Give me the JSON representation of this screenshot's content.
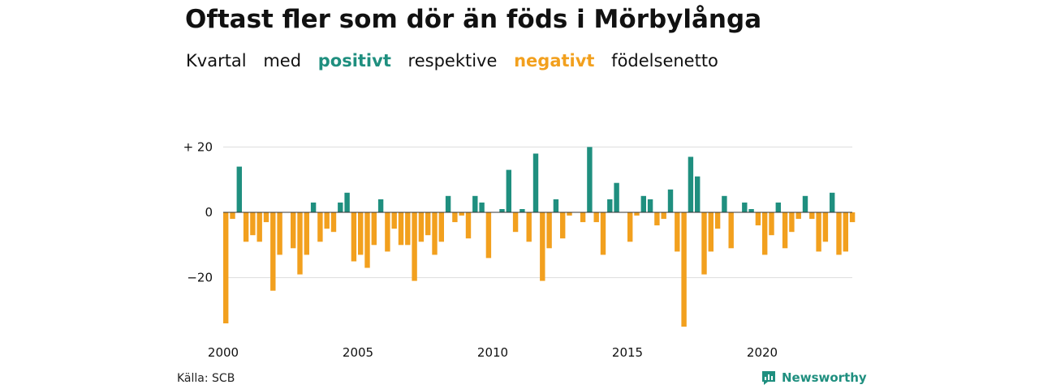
{
  "header": {
    "title": "Oftast fler som dör än föds i Mörbylånga",
    "subtitle_parts": [
      "Kvartal",
      "med",
      "positivt",
      "respektive",
      "negativt",
      "födelsenetto"
    ]
  },
  "footer": {
    "source": "Källa: SCB",
    "brand": "Newsworthy",
    "brand_icon": "chart-bubble-icon"
  },
  "colors": {
    "positive": "#1f8f7f",
    "negative": "#f2a01e",
    "grid": "#dddddd",
    "zero_line": "#333333"
  },
  "chart_data": {
    "type": "bar",
    "title": "Oftast fler som dör än föds i Mörbylånga",
    "subtitle": "Kvartal med positivt respektive negativt födelsenetto",
    "x_start": 2000,
    "periods_per_year": 4,
    "x_tick_labels": [
      "2000",
      "2005",
      "2010",
      "2015",
      "2020"
    ],
    "y_tick_labels": [
      "+ 20",
      "0",
      "−20"
    ],
    "y_ticks": [
      20,
      0,
      -20
    ],
    "ylim": [
      -36,
      22
    ],
    "grid": true,
    "values": [
      -34,
      -2,
      14,
      -9,
      -7,
      -9,
      -3,
      -24,
      -13,
      0,
      -11,
      -19,
      -13,
      3,
      -9,
      -5,
      -6,
      3,
      6,
      -15,
      -13,
      -17,
      -10,
      4,
      -12,
      -5,
      -10,
      -10,
      -21,
      -9,
      -7,
      -13,
      -9,
      5,
      -3,
      -1,
      -8,
      5,
      3,
      -14,
      0,
      1,
      13,
      -6,
      1,
      -9,
      18,
      -21,
      -11,
      4,
      -8,
      -1,
      0,
      -3,
      20,
      -3,
      -13,
      4,
      9,
      0,
      -9,
      -1,
      5,
      4,
      -4,
      -2,
      7,
      -12,
      -35,
      17,
      11,
      -19,
      -12,
      -5,
      5,
      -11,
      0,
      3,
      1,
      -4,
      -13,
      -7,
      3,
      -11,
      -6,
      -2,
      5,
      -2,
      -12,
      -9,
      6,
      -13,
      -12,
      -3
    ]
  }
}
